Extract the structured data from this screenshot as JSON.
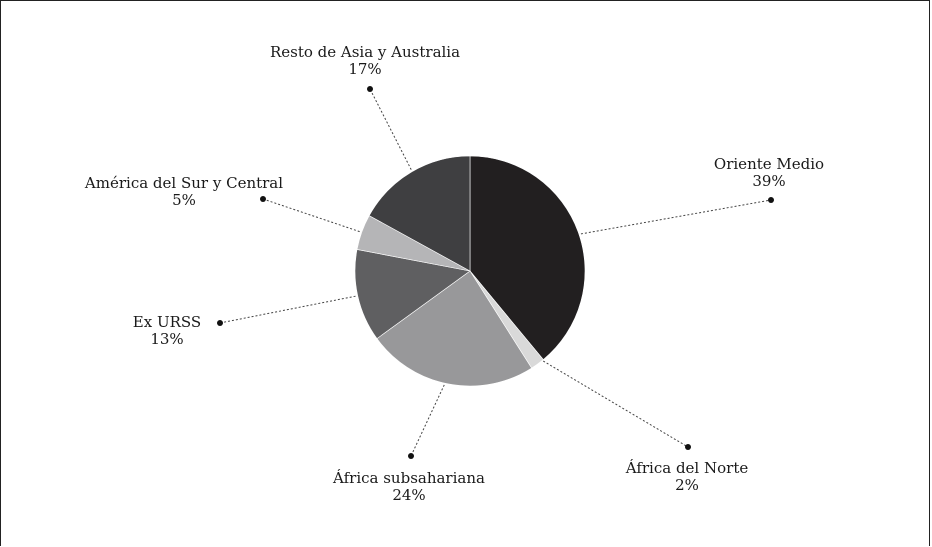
{
  "chart_data": {
    "type": "pie",
    "start_angle_deg": 90,
    "direction": "clockwise",
    "slices": [
      {
        "label": "Oriente Medio",
        "value": 39,
        "pct_label": "39%",
        "color": "#221f20"
      },
      {
        "label": "África del Norte",
        "value": 2,
        "pct_label": "2%",
        "color": "#d9d9d9"
      },
      {
        "label": "África subsahariana",
        "value": 24,
        "pct_label": "24%",
        "color": "#98989a"
      },
      {
        "label": "Ex URSS",
        "value": 13,
        "pct_label": "13%",
        "color": "#5f5f61"
      },
      {
        "label": "América del Sur y Central",
        "value": 5,
        "pct_label": "5%",
        "color": "#b5b5b7"
      },
      {
        "label": "Resto de Asia y Australia",
        "value": 17,
        "pct_label": "17%",
        "color": "#3f3f41"
      }
    ],
    "legend": "callout-labels"
  }
}
